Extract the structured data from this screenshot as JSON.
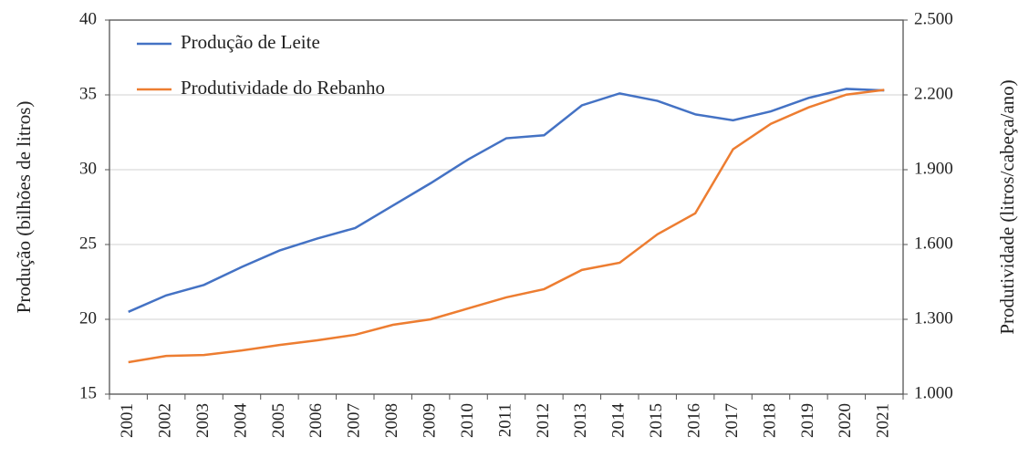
{
  "chart_data": {
    "type": "line",
    "y_label": "Produção (bilhões de litros)",
    "y2_label": "Produtividade (litros/cabeça/ano)",
    "categories": [
      "2001",
      "2002",
      "2003",
      "2004",
      "2005",
      "2006",
      "2007",
      "2008",
      "2009",
      "2010",
      "2011",
      "2012",
      "2013",
      "2014",
      "2015",
      "2016",
      "2017",
      "2018",
      "2019",
      "2020",
      "2021"
    ],
    "series": [
      {
        "name": "Produção de Leite",
        "color": "#4472c4",
        "values": [
          20.5,
          21.6,
          22.3,
          23.5,
          24.6,
          25.4,
          26.1,
          27.6,
          29.1,
          30.7,
          32.1,
          32.3,
          34.3,
          35.1,
          34.6,
          33.7,
          33.3,
          33.9,
          34.8,
          35.4,
          35.3
        ]
      },
      {
        "name": "Produtividade do Rebanho",
        "color": "#ed7d31",
        "axis": "y2",
        "values": [
          1128,
          1153,
          1157,
          1175,
          1197,
          1216,
          1238,
          1278,
          1300,
          1344,
          1388,
          1421,
          1498,
          1527,
          1641,
          1725,
          1982,
          2084,
          2150,
          2201,
          2220
        ]
      }
    ],
    "ylim": [
      15,
      40
    ],
    "yticks": [
      15,
      20,
      25,
      30,
      35,
      40
    ],
    "y2lim": [
      1000,
      2500
    ],
    "y2ticks": [
      {
        "value": 1000,
        "label": "1.000"
      },
      {
        "value": 1300,
        "label": "1.300"
      },
      {
        "value": 1600,
        "label": "1.600"
      },
      {
        "value": 1900,
        "label": "1.900"
      },
      {
        "value": 2200,
        "label": "2.200"
      },
      {
        "value": 2500,
        "label": "2.500"
      }
    ],
    "grid": true,
    "legend": "upper-left"
  }
}
